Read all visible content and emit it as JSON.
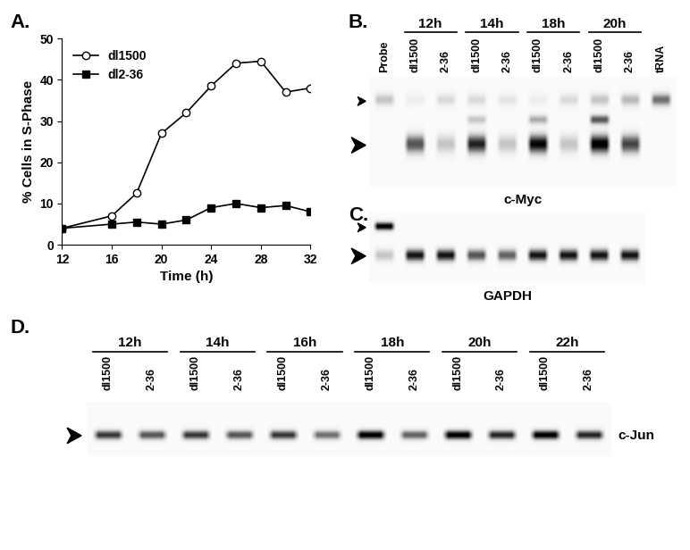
{
  "chart_data": {
    "type": "line",
    "panel_label": "A.",
    "xlabel": "Time (h)",
    "ylabel": "% Cells in S-Phase",
    "x": [
      12,
      16,
      18,
      20,
      22,
      24,
      26,
      28,
      30,
      32
    ],
    "xlim": [
      12,
      32
    ],
    "ylim": [
      0,
      50
    ],
    "xticks": [
      12,
      16,
      20,
      24,
      28,
      32
    ],
    "yticks": [
      0,
      10,
      20,
      30,
      40,
      50
    ],
    "legend": "upper left",
    "series": [
      {
        "name": "dl1500",
        "color": "#000000",
        "marker": "open-circle",
        "line_style": "solid",
        "values": [
          4,
          7,
          12.5,
          27,
          32,
          38.5,
          44,
          44.5,
          37,
          38
        ]
      },
      {
        "name": "dl2-36",
        "color": "#000000",
        "marker": "square",
        "line_style": "solid",
        "values": [
          4,
          5,
          5.5,
          5,
          6,
          9,
          10,
          9,
          9.5,
          8
        ]
      }
    ]
  },
  "blots": [
    {
      "panel_label": "B.",
      "target": "c-Myc",
      "lanes": [
        {
          "label": "Probe",
          "group": null
        },
        {
          "label": "dl1500",
          "group": "12h"
        },
        {
          "label": "2-36",
          "group": "12h"
        },
        {
          "label": "dl1500",
          "group": "14h"
        },
        {
          "label": "2-36",
          "group": "14h"
        },
        {
          "label": "dl1500",
          "group": "18h"
        },
        {
          "label": "2-36",
          "group": "18h"
        },
        {
          "label": "dl1500",
          "group": "20h"
        },
        {
          "label": "2-36",
          "group": "20h"
        },
        {
          "label": "tRNA",
          "group": null
        }
      ],
      "bands": {
        "upper": [
          0.3,
          0.1,
          0.2,
          0.2,
          0.15,
          0.1,
          0.2,
          0.3,
          0.35,
          0.6
        ],
        "middle": [
          0,
          0,
          0,
          0.3,
          0,
          0.4,
          0,
          0.7,
          0,
          0
        ],
        "lower": [
          0,
          0.7,
          0.3,
          0.85,
          0.3,
          0.95,
          0.3,
          1.0,
          0.75,
          0
        ]
      }
    },
    {
      "panel_label": "C.",
      "target": "GAPDH",
      "bands": {
        "upper": [
          1.0,
          0,
          0,
          0,
          0,
          0,
          0,
          0,
          0
        ],
        "lower": [
          0.3,
          0.9,
          0.9,
          0.7,
          0.65,
          0.9,
          0.9,
          0.9,
          0.9
        ]
      }
    },
    {
      "panel_label": "D.",
      "target": "c-Jun",
      "lanes": [
        {
          "label": "dl1500",
          "group": "12h"
        },
        {
          "label": "2-36",
          "group": "12h"
        },
        {
          "label": "dl1500",
          "group": "14h"
        },
        {
          "label": "2-36",
          "group": "14h"
        },
        {
          "label": "dl1500",
          "group": "16h"
        },
        {
          "label": "2-36",
          "group": "16h"
        },
        {
          "label": "dl1500",
          "group": "18h"
        },
        {
          "label": "2-36",
          "group": "18h"
        },
        {
          "label": "dl1500",
          "group": "20h"
        },
        {
          "label": "2-36",
          "group": "20h"
        },
        {
          "label": "dl1500",
          "group": "22h"
        },
        {
          "label": "2-36",
          "group": "22h"
        }
      ],
      "bands": {
        "lower": [
          0.8,
          0.7,
          0.8,
          0.7,
          0.8,
          0.6,
          1.0,
          0.65,
          1.0,
          0.85,
          1.0,
          0.85
        ]
      }
    }
  ]
}
